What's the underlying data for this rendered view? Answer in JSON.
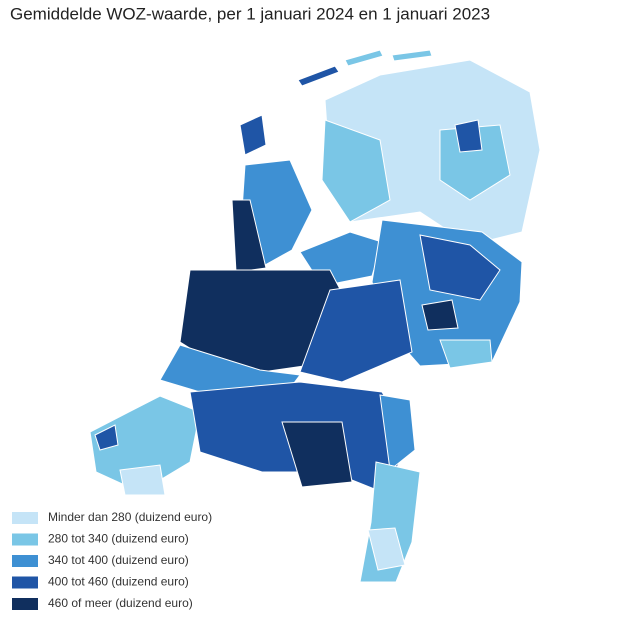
{
  "title": "Gemiddelde WOZ-waarde, per 1 januari 2024 en 1 januari 2023",
  "legend": {
    "items": [
      {
        "label": "Minder dan 280 (duizend euro)",
        "color": "#c5e4f7"
      },
      {
        "label": "280 tot 340 (duizend euro)",
        "color": "#7ac6e6"
      },
      {
        "label": "340 tot 400 (duizend euro)",
        "color": "#3e90d3"
      },
      {
        "label": "400 tot 460 (duizend euro)",
        "color": "#1f55a6"
      },
      {
        "label": "460 of meer (duizend euro)",
        "color": "#102f5e"
      }
    ]
  }
}
